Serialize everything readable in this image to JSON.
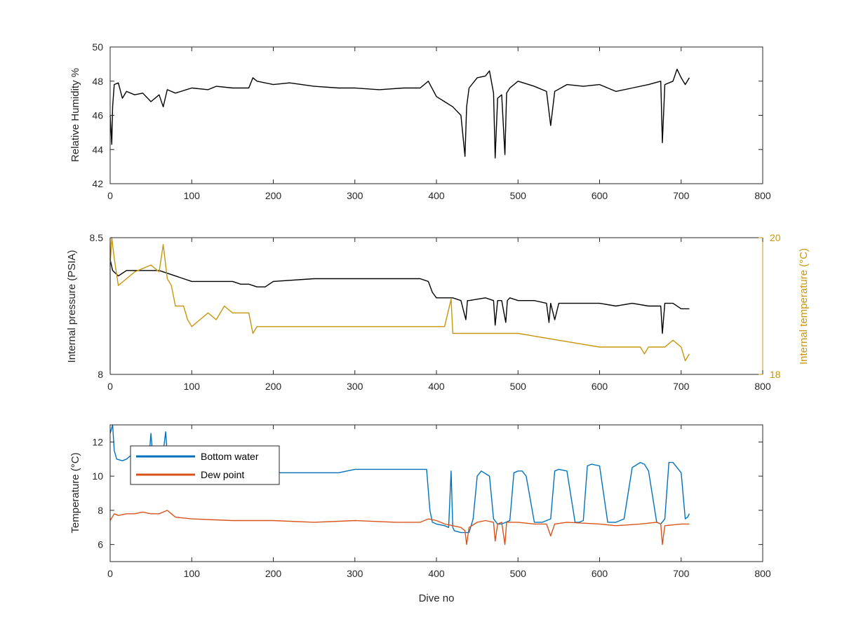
{
  "colors": {
    "black": "#000000",
    "gold": "#C8960C",
    "blue": "#0072BD",
    "orange": "#D95319",
    "axis": "#262626"
  },
  "chart_data": [
    {
      "type": "line",
      "xlabel": "",
      "ylabel": "Relative Humidity %",
      "xlim": [
        0,
        800
      ],
      "ylim": [
        42,
        50
      ],
      "xticks": [
        "0",
        "100",
        "200",
        "300",
        "400",
        "500",
        "600",
        "700",
        "800"
      ],
      "yticks": [
        "42",
        "44",
        "46",
        "48",
        "50"
      ],
      "series": [
        {
          "color": "#000000",
          "x": [
            0,
            2,
            3,
            5,
            10,
            15,
            20,
            30,
            40,
            50,
            60,
            65,
            70,
            80,
            100,
            120,
            130,
            150,
            170,
            175,
            180,
            200,
            220,
            250,
            280,
            300,
            330,
            360,
            380,
            390,
            400,
            410,
            420,
            430,
            435,
            437,
            440,
            450,
            460,
            465,
            470,
            472,
            475,
            480,
            484,
            486,
            490,
            500,
            520,
            535,
            540,
            545,
            560,
            580,
            600,
            620,
            640,
            660,
            675,
            677,
            680,
            690,
            695,
            700,
            705,
            710
          ],
          "y": [
            46,
            44.3,
            46.5,
            47.8,
            47.9,
            47.0,
            47.4,
            47.2,
            47.3,
            46.8,
            47.2,
            46.5,
            47.5,
            47.3,
            47.6,
            47.5,
            47.7,
            47.6,
            47.6,
            48.2,
            48.0,
            47.8,
            47.9,
            47.7,
            47.6,
            47.6,
            47.5,
            47.6,
            47.6,
            48.0,
            47.1,
            46.8,
            46.5,
            46.0,
            43.6,
            46.5,
            47.6,
            48.2,
            48.3,
            48.6,
            47.3,
            43.5,
            47.0,
            47.2,
            43.7,
            47.3,
            47.6,
            48.0,
            47.7,
            47.4,
            45.4,
            47.4,
            47.8,
            47.7,
            47.8,
            47.4,
            47.6,
            47.8,
            48.0,
            44.4,
            47.8,
            48.0,
            48.7,
            48.2,
            47.8,
            48.2
          ]
        }
      ]
    },
    {
      "type": "line",
      "xlabel": "",
      "ylabel": "Internal pressure (PSIA)",
      "y2label": "Internal temperature (°C)",
      "xlim": [
        0,
        800
      ],
      "ylim": [
        8,
        8.5
      ],
      "y2lim": [
        18,
        20
      ],
      "xticks": [
        "0",
        "100",
        "200",
        "300",
        "400",
        "500",
        "600",
        "700",
        "800"
      ],
      "yticks": [
        "8",
        "8.5"
      ],
      "y2ticks": [
        "18",
        "20"
      ],
      "series": [
        {
          "axis": "left",
          "color": "#000000",
          "x": [
            0,
            3,
            10,
            20,
            40,
            60,
            70,
            80,
            90,
            100,
            120,
            140,
            150,
            160,
            170,
            180,
            190,
            200,
            250,
            300,
            350,
            380,
            390,
            395,
            400,
            410,
            420,
            430,
            436,
            438,
            440,
            460,
            470,
            472,
            475,
            480,
            485,
            487,
            490,
            500,
            520,
            535,
            538,
            540,
            545,
            550,
            600,
            620,
            640,
            660,
            675,
            677,
            680,
            690,
            700,
            710
          ],
          "y": [
            8.42,
            8.38,
            8.36,
            8.38,
            8.38,
            8.38,
            8.37,
            8.36,
            8.35,
            8.34,
            8.34,
            8.34,
            8.34,
            8.33,
            8.33,
            8.32,
            8.32,
            8.34,
            8.35,
            8.35,
            8.35,
            8.35,
            8.34,
            8.3,
            8.28,
            8.28,
            8.28,
            8.27,
            8.2,
            8.27,
            8.27,
            8.28,
            8.27,
            8.18,
            8.27,
            8.27,
            8.19,
            8.27,
            8.28,
            8.27,
            8.27,
            8.26,
            8.19,
            8.26,
            8.2,
            8.26,
            8.26,
            8.25,
            8.26,
            8.25,
            8.25,
            8.15,
            8.26,
            8.26,
            8.24,
            8.24
          ]
        },
        {
          "axis": "right",
          "color": "#C8960C",
          "x": [
            0,
            2,
            5,
            10,
            20,
            30,
            50,
            60,
            65,
            68,
            70,
            75,
            80,
            90,
            95,
            100,
            110,
            120,
            130,
            140,
            150,
            160,
            170,
            175,
            180,
            200,
            250,
            300,
            350,
            400,
            410,
            418,
            420,
            422,
            450,
            500,
            550,
            600,
            650,
            655,
            660,
            670,
            680,
            690,
            700,
            705,
            710
          ],
          "y": [
            19.6,
            20.0,
            19.7,
            19.3,
            19.4,
            19.5,
            19.6,
            19.5,
            19.9,
            19.6,
            19.4,
            19.3,
            19.0,
            19.0,
            18.8,
            18.7,
            18.8,
            18.9,
            18.8,
            19.0,
            18.9,
            18.9,
            18.9,
            18.6,
            18.7,
            18.7,
            18.7,
            18.7,
            18.7,
            18.7,
            18.7,
            19.1,
            18.6,
            18.6,
            18.6,
            18.6,
            18.5,
            18.4,
            18.4,
            18.3,
            18.4,
            18.4,
            18.4,
            18.5,
            18.4,
            18.2,
            18.3
          ]
        }
      ]
    },
    {
      "type": "line",
      "xlabel": "Dive no",
      "ylabel": "Temperature (°C)",
      "xlim": [
        0,
        800
      ],
      "ylim": [
        5,
        13
      ],
      "xticks": [
        "0",
        "100",
        "200",
        "300",
        "400",
        "500",
        "600",
        "700",
        "800"
      ],
      "yticks": [
        "6",
        "8",
        "10",
        "12"
      ],
      "legend": "top-left",
      "series": [
        {
          "name": "Bottom water",
          "color": "#0072BD",
          "x": [
            0,
            3,
            5,
            8,
            15,
            20,
            25,
            40,
            48,
            50,
            52,
            60,
            65,
            68,
            70,
            80,
            100,
            200,
            250,
            280,
            300,
            350,
            385,
            388,
            392,
            395,
            400,
            410,
            415,
            418,
            420,
            422,
            430,
            440,
            445,
            450,
            455,
            465,
            470,
            475,
            480,
            490,
            495,
            500,
            505,
            510,
            520,
            530,
            540,
            545,
            550,
            560,
            570,
            575,
            580,
            585,
            590,
            600,
            610,
            620,
            630,
            640,
            650,
            655,
            660,
            670,
            675,
            680,
            685,
            690,
            700,
            705,
            708,
            710
          ],
          "y": [
            12.5,
            13.5,
            11.5,
            11.0,
            10.9,
            11.0,
            11.2,
            11.2,
            11.3,
            12.5,
            11.3,
            11.2,
            11.4,
            12.6,
            11.3,
            11.1,
            10.3,
            10.2,
            10.2,
            10.2,
            10.4,
            10.4,
            10.4,
            10.4,
            8.0,
            7.3,
            7.2,
            7.1,
            7.0,
            10.3,
            7.0,
            6.8,
            6.7,
            6.7,
            7.5,
            10.0,
            10.3,
            10.0,
            7.5,
            7.2,
            7.2,
            7.4,
            10.2,
            10.3,
            10.3,
            10.0,
            7.3,
            7.3,
            7.5,
            10.3,
            10.4,
            10.3,
            7.3,
            7.3,
            7.4,
            10.6,
            10.7,
            10.6,
            7.3,
            7.3,
            7.5,
            10.5,
            10.8,
            10.7,
            10.3,
            7.3,
            7.2,
            7.5,
            10.8,
            10.8,
            10.2,
            7.5,
            7.6,
            7.8
          ]
        },
        {
          "name": "Dew point",
          "color": "#D95319",
          "x": [
            0,
            5,
            10,
            20,
            30,
            40,
            50,
            60,
            70,
            75,
            80,
            100,
            150,
            200,
            250,
            300,
            350,
            380,
            390,
            400,
            410,
            420,
            430,
            435,
            437,
            440,
            450,
            460,
            470,
            472,
            475,
            480,
            484,
            486,
            490,
            500,
            520,
            535,
            540,
            545,
            560,
            600,
            620,
            650,
            670,
            675,
            677,
            680,
            700,
            710
          ],
          "y": [
            7.4,
            7.8,
            7.7,
            7.8,
            7.8,
            7.9,
            7.8,
            7.8,
            8.0,
            7.8,
            7.6,
            7.5,
            7.4,
            7.4,
            7.3,
            7.4,
            7.3,
            7.3,
            7.5,
            7.4,
            7.2,
            7.1,
            7.0,
            6.8,
            6.0,
            7.0,
            7.3,
            7.4,
            7.3,
            6.2,
            7.2,
            7.3,
            6.0,
            7.3,
            7.3,
            7.3,
            7.2,
            7.2,
            6.5,
            7.2,
            7.3,
            7.2,
            7.1,
            7.2,
            7.3,
            7.2,
            6.0,
            7.1,
            7.2,
            7.2
          ]
        }
      ]
    }
  ]
}
